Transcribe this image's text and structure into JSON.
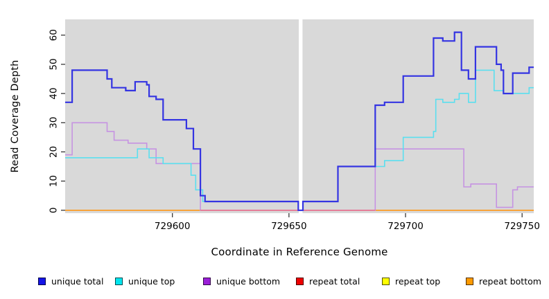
{
  "chart_data": {
    "type": "line",
    "line_style": "step",
    "title": "",
    "xlabel": "Coordinate in Reference Genome",
    "ylabel": "Read Coverage Depth",
    "x_ticks": [
      729600,
      729650,
      729700,
      729750
    ],
    "y_ticks": [
      0,
      10,
      20,
      30,
      40,
      50,
      60
    ],
    "xlim": [
      729554,
      729755
    ],
    "ylim": [
      -1,
      65.4
    ],
    "panel_background": "#d9d9d9",
    "grid": false,
    "legend_position": "bottom",
    "mask_gap": {
      "from": 729654.2,
      "to": 729655.8,
      "color": "#ffffff"
    },
    "bottom_overlay": {
      "from": 729612,
      "to": 729687,
      "value": 0,
      "color": "#e8688f"
    },
    "series": [
      {
        "name": "unique total",
        "color": "#3434e2",
        "legend_fill": "#1414e6",
        "line_width": 2.2,
        "steps": [
          [
            729554,
            37
          ],
          [
            729557,
            48
          ],
          [
            729572,
            45
          ],
          [
            729574,
            42
          ],
          [
            729580,
            41
          ],
          [
            729584,
            44
          ],
          [
            729589,
            43
          ],
          [
            729590,
            39
          ],
          [
            729593,
            38
          ],
          [
            729596,
            31
          ],
          [
            729606,
            28
          ],
          [
            729609,
            21
          ],
          [
            729612,
            5
          ],
          [
            729614,
            3
          ],
          [
            729654,
            0
          ],
          [
            729656,
            3
          ],
          [
            729671,
            15
          ],
          [
            729687,
            36
          ],
          [
            729691,
            37
          ],
          [
            729699,
            46
          ],
          [
            729712,
            59
          ],
          [
            729716,
            58
          ],
          [
            729721,
            61
          ],
          [
            729724,
            48
          ],
          [
            729727,
            45
          ],
          [
            729730,
            56
          ],
          [
            729739,
            50
          ],
          [
            729741,
            48
          ],
          [
            729742,
            40
          ],
          [
            729746,
            47
          ],
          [
            729753,
            49
          ]
        ]
      },
      {
        "name": "unique top",
        "color": "#5adfef",
        "legend_fill": "#00e5ee",
        "line_width": 1.6,
        "steps": [
          [
            729554,
            18
          ],
          [
            729585,
            21
          ],
          [
            729590,
            18
          ],
          [
            729596,
            16
          ],
          [
            729608,
            12
          ],
          [
            729610,
            7
          ],
          [
            729613,
            3
          ],
          [
            729654,
            0
          ],
          [
            729656,
            3
          ],
          [
            729671,
            15
          ],
          [
            729691,
            17
          ],
          [
            729699,
            25
          ],
          [
            729712,
            27
          ],
          [
            729713,
            38
          ],
          [
            729716,
            37
          ],
          [
            729721,
            38
          ],
          [
            729723,
            40
          ],
          [
            729727,
            37
          ],
          [
            729730,
            48
          ],
          [
            729738,
            41
          ],
          [
            729742,
            40
          ],
          [
            729753,
            42
          ]
        ]
      },
      {
        "name": "unique bottom",
        "color": "#c693e2",
        "legend_fill": "#9b1fd8",
        "line_width": 1.6,
        "steps": [
          [
            729554,
            19
          ],
          [
            729557,
            30
          ],
          [
            729572,
            27
          ],
          [
            729575,
            24
          ],
          [
            729581,
            23
          ],
          [
            729589,
            21
          ],
          [
            729593,
            16
          ],
          [
            729612,
            0
          ],
          [
            729687,
            21
          ],
          [
            729725,
            8
          ],
          [
            729728,
            9
          ],
          [
            729739,
            1
          ],
          [
            729746,
            7
          ],
          [
            729748,
            8
          ]
        ]
      },
      {
        "name": "repeat total",
        "color": "#e8688f",
        "legend_fill": "#ee0000",
        "line_width": 1.4,
        "steps": [
          [
            729554,
            0
          ]
        ]
      },
      {
        "name": "repeat top",
        "color": "#ffff00",
        "legend_fill": "#ffff00",
        "line_width": 1.4,
        "steps": [
          [
            729554,
            0
          ]
        ]
      },
      {
        "name": "repeat bottom",
        "color": "#ff9615",
        "legend_fill": "#ff9a00",
        "line_width": 1.6,
        "steps": [
          [
            729554,
            0
          ]
        ]
      }
    ]
  }
}
